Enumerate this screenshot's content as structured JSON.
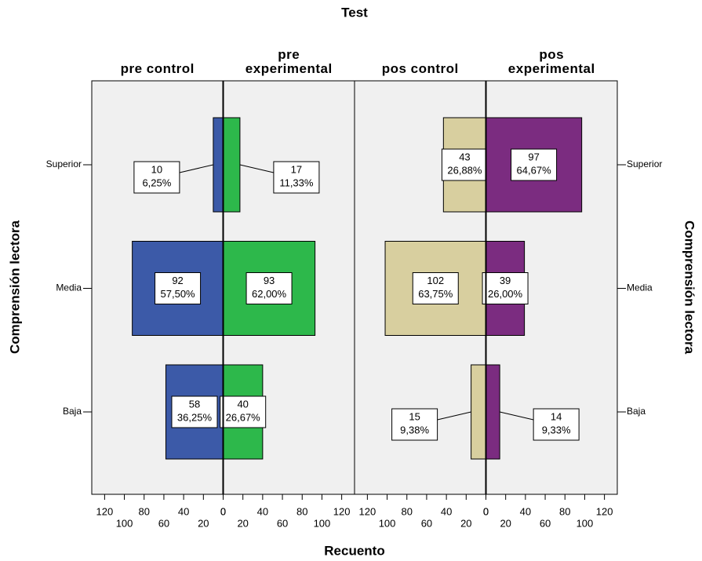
{
  "chart_data": {
    "type": "population_pyramid",
    "title": "Test",
    "y_label": "Comprensión lectora",
    "x_label": "Recuento",
    "categories": [
      "Superior",
      "Media",
      "Baja"
    ],
    "xlim": [
      0,
      133
    ],
    "xticks": [
      0,
      20,
      40,
      60,
      80,
      100,
      120
    ],
    "panels": [
      {
        "series": [
          {
            "name": "pre control",
            "color": "#3c5aa8",
            "values": [
              10,
              92,
              58
            ],
            "percents": [
              6.25,
              57.5,
              36.25
            ],
            "percent_labels": [
              "6,25%",
              "57,50%",
              "36,25%"
            ]
          },
          {
            "name": "pre experimental",
            "color": "#2db84b",
            "values": [
              17,
              93,
              40
            ],
            "percents": [
              11.33,
              62.0,
              26.67
            ],
            "percent_labels": [
              "11,33%",
              "62,00%",
              "26,67%"
            ]
          }
        ]
      },
      {
        "series": [
          {
            "name": "pos control",
            "color": "#d8cf9f",
            "values": [
              43,
              102,
              15
            ],
            "percents": [
              26.88,
              63.75,
              9.38
            ],
            "percent_labels": [
              "26,88%",
              "63,75%",
              "9,38%"
            ]
          },
          {
            "name": "pos experimental",
            "color": "#7b2c80",
            "values": [
              97,
              39,
              14
            ],
            "percents": [
              64.67,
              26.0,
              9.33
            ],
            "percent_labels": [
              "64,67%",
              "26,00%",
              "9,33%"
            ]
          }
        ]
      }
    ]
  }
}
